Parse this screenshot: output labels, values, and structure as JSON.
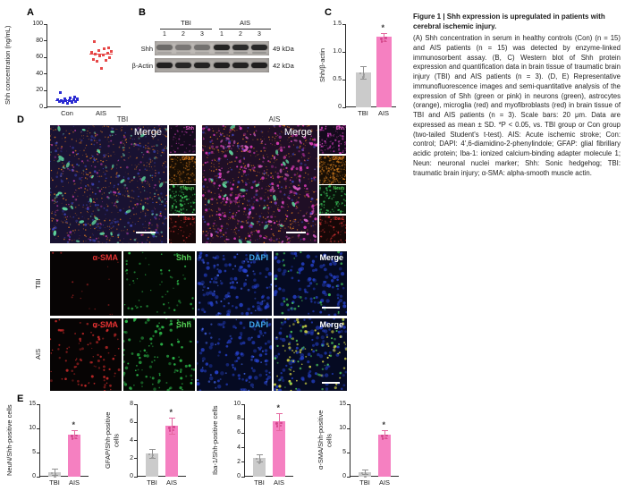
{
  "panel_labels": {
    "a": "A",
    "b": "B",
    "c": "C",
    "d": "D",
    "e": "E"
  },
  "caption": {
    "title": "Figure 1  |  Shh expression is upregulated in patients with cerebral ischemic injury.",
    "body": "(A) Shh concentration in serum in healthy controls (Con) (n = 15) and AIS patients (n = 15) was detected by enzyme-linked immunosorbent assay. (B, C) Western blot of Shh protein expression and quantification data in brain tissue of traumatic brain injury (TBI) and AIS patients (n = 3). (D, E) Representative immunofluorescence images and semi-quantitative analysis of the expression of Shh (green or pink) in neurons (green), astrocytes (orange), microglia (red) and myofibroblasts (red) in brain tissue of TBI and AIS patients (n = 3). Scale bars: 20 μm. Data are expressed as mean ± SD. *P < 0.05, vs. TBI group or Con group (two-tailed Student's t-test). AIS: Acute ischemic stroke; Con: control; DAPI: 4',6-diamidino-2-phenylindole; GFAP: glial fibrillary acidic protein; Iba-1: ionized calcium-binding adapter molecule 1; Neun: neuronal nuclei marker; Shh: Sonic hedgehog; TBI: traumatic brain injury; α-SMA: alpha-smooth muscle actin."
  },
  "panel_b": {
    "groups": [
      "TBI",
      "AIS"
    ],
    "lanes": [
      "1",
      "2",
      "3",
      "1",
      "2",
      "3"
    ],
    "row_labels": [
      "Shh",
      "β-Actin"
    ],
    "size_labels": [
      "49 kDa",
      "42 kDa"
    ],
    "band_intensity": {
      "shh": [
        0.5,
        0.42,
        0.46,
        0.95,
        0.9,
        0.92
      ],
      "actin": [
        0.92,
        0.88,
        0.9,
        0.92,
        0.9,
        0.93
      ]
    }
  },
  "panel_d": {
    "group_headers": [
      "TBI",
      "AIS"
    ],
    "merge_label": "Merge",
    "strip_labels": [
      "Shh",
      "GFAP",
      "Neun",
      "Iba-1"
    ],
    "strip_label_colors": [
      "#e257c4",
      "#e8831f",
      "#4ec84e",
      "#e03232"
    ],
    "grid_col_labels": [
      "α-SMA",
      "Shh",
      "DAPI",
      "Merge"
    ],
    "grid_col_colors": [
      "#e23232",
      "#55d055",
      "#3fa8f0",
      "#ffffff"
    ],
    "row_labels": [
      "TBI",
      "AIS"
    ]
  },
  "colors": {
    "bar_gray": "#cbcbcb",
    "bar_pink": "#f580c1",
    "err_gray": "#8f8f8f",
    "err_pink": "#e4679f",
    "dot_gray": "#9a9a9a",
    "dot_pink": "#d4468d",
    "scatter_con": "#2a2ad2",
    "scatter_ais": "#e64848",
    "axis": "#2b2b2b"
  },
  "chart_data": [
    {
      "id": "A",
      "type": "scatter",
      "ylabel": "Shh concentration (ng/mL)",
      "ylim": [
        0,
        100
      ],
      "yticks": [
        "0",
        "20",
        "40",
        "60",
        "80",
        "100"
      ],
      "categories": [
        "Con",
        "AIS"
      ],
      "series": [
        {
          "name": "Con",
          "mean": 8,
          "values": [
            5,
            6,
            6,
            7,
            7,
            8,
            8,
            8,
            9,
            9,
            10,
            10,
            11,
            12,
            18
          ]
        },
        {
          "name": "AIS",
          "mean": 64,
          "values": [
            47,
            55,
            57,
            58,
            60,
            62,
            63,
            64,
            65,
            66,
            67,
            68,
            70,
            72,
            79
          ]
        }
      ]
    },
    {
      "id": "C",
      "type": "bar",
      "ylabel": "Shh/β-actin",
      "ylim": [
        0,
        1.5
      ],
      "yticks": [
        "0",
        "0.5",
        "1.0",
        "1.5"
      ],
      "categories": [
        "TBI",
        "AIS"
      ],
      "values": [
        0.63,
        1.27
      ],
      "errors": [
        0.12,
        0.07
      ],
      "sig": [
        "",
        "*"
      ]
    },
    {
      "id": "E1",
      "type": "bar",
      "ylabel": "NeuN/Shh-positive cells",
      "ylim": [
        0,
        15
      ],
      "yticks": [
        "0",
        "5",
        "10",
        "15"
      ],
      "categories": [
        "TBI",
        "AIS"
      ],
      "values": [
        1.0,
        8.8
      ],
      "errors": [
        0.6,
        0.8
      ],
      "sig": [
        "",
        "*"
      ]
    },
    {
      "id": "E2",
      "type": "bar",
      "ylabel": "GFAP/Shh-positive cells",
      "ylim": [
        0,
        8
      ],
      "yticks": [
        "0",
        "2",
        "4",
        "6",
        "8"
      ],
      "categories": [
        "TBI",
        "AIS"
      ],
      "values": [
        2.6,
        5.6
      ],
      "errors": [
        0.5,
        0.9
      ],
      "sig": [
        "",
        "*"
      ]
    },
    {
      "id": "E3",
      "type": "bar",
      "ylabel": "Iba-1/Shh-positive cells",
      "ylim": [
        0,
        10
      ],
      "yticks": [
        "0",
        "2",
        "4",
        "6",
        "8",
        "10"
      ],
      "categories": [
        "TBI",
        "AIS"
      ],
      "values": [
        2.6,
        7.6
      ],
      "errors": [
        0.5,
        1.2
      ],
      "sig": [
        "",
        "*"
      ]
    },
    {
      "id": "E4",
      "type": "bar",
      "ylabel": "α-SMA/Shh-positive cells",
      "ylim": [
        0,
        15
      ],
      "yticks": [
        "0",
        "5",
        "10",
        "15"
      ],
      "categories": [
        "TBI",
        "AIS"
      ],
      "values": [
        1.0,
        8.8
      ],
      "errors": [
        0.5,
        0.8
      ],
      "sig": [
        "",
        "*"
      ]
    }
  ]
}
